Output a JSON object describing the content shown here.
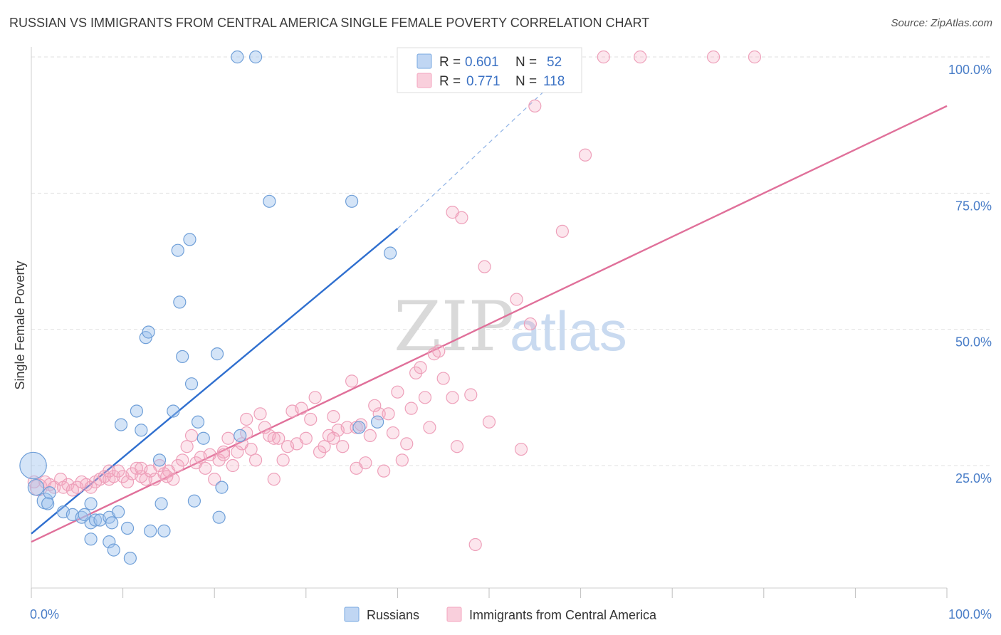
{
  "title": "RUSSIAN VS IMMIGRANTS FROM CENTRAL AMERICA SINGLE FEMALE POVERTY CORRELATION CHART",
  "source": "Source: ZipAtlas.com",
  "watermark": {
    "zip": "ZIP",
    "atlas": "atlas"
  },
  "legend_box": {
    "row1": {
      "r_label": "R =",
      "r_value": "0.601",
      "n_label": "N =",
      "n_value": "52"
    },
    "row2": {
      "r_label": "R =",
      "r_value": "0.771",
      "n_label": "N =",
      "n_value": "118"
    }
  },
  "chart_data": {
    "type": "scatter",
    "title": "RUSSIAN VS IMMIGRANTS FROM CENTRAL AMERICA SINGLE FEMALE POVERTY CORRELATION CHART",
    "xlabel": "",
    "ylabel": "Single Female Poverty",
    "xlim": [
      0,
      100
    ],
    "ylim": [
      5,
      102
    ],
    "x_tick_labels": [
      "0.0%",
      "100.0%"
    ],
    "y_ticks": [
      25,
      50,
      75,
      100
    ],
    "y_tick_labels": [
      "25.0%",
      "50.0%",
      "75.0%",
      "100.0%"
    ],
    "grid": "horizontal dashed",
    "legend_placement": "bottom-center",
    "colors": {
      "russians": "#7aa9e0",
      "russians_line": "#2f6fcf",
      "central_america": "#f4a6bf",
      "central_america_line": "#e0709a"
    },
    "series": [
      {
        "name": "Russians",
        "R": 0.601,
        "N": 52,
        "trend": {
          "x": [
            0,
            40
          ],
          "y": [
            12.5,
            68.5
          ],
          "dashed_to": {
            "x": 60,
            "y": 100
          }
        },
        "points": [
          [
            0.2,
            25.0,
            2.2
          ],
          [
            0.5,
            21.0,
            1.3
          ],
          [
            1.5,
            18.5,
            1.3
          ],
          [
            2.0,
            20.0,
            1
          ],
          [
            1.8,
            18.0,
            1
          ],
          [
            3.5,
            16.5,
            1
          ],
          [
            4.5,
            16.0,
            1
          ],
          [
            5.5,
            15.5,
            1
          ],
          [
            6.5,
            14.5,
            1
          ],
          [
            5.8,
            16.0,
            1
          ],
          [
            7.0,
            15.0,
            1
          ],
          [
            6.5,
            18.0,
            1
          ],
          [
            6.5,
            11.5,
            1
          ],
          [
            7.5,
            15.0,
            1
          ],
          [
            8.5,
            11.0,
            1
          ],
          [
            8.5,
            15.5,
            1
          ],
          [
            8.8,
            14.5,
            1
          ],
          [
            9.5,
            16.5,
            1
          ],
          [
            9.0,
            9.5,
            1
          ],
          [
            10.5,
            13.5,
            1
          ],
          [
            10.8,
            8.0,
            1
          ],
          [
            9.8,
            32.5,
            1
          ],
          [
            11.5,
            35.0,
            1
          ],
          [
            12.0,
            31.5,
            1
          ],
          [
            12.5,
            48.5,
            1
          ],
          [
            12.8,
            49.5,
            1
          ],
          [
            13.0,
            13.0,
            1
          ],
          [
            14.0,
            26.0,
            1
          ],
          [
            14.2,
            18.0,
            1
          ],
          [
            14.5,
            13.0,
            1
          ],
          [
            15.5,
            35.0,
            1
          ],
          [
            16.0,
            64.5,
            1
          ],
          [
            16.2,
            55.0,
            1
          ],
          [
            16.5,
            45.0,
            1
          ],
          [
            17.3,
            66.5,
            1
          ],
          [
            17.5,
            40.0,
            1
          ],
          [
            17.8,
            18.5,
            1
          ],
          [
            18.2,
            33.0,
            1
          ],
          [
            18.8,
            30.0,
            1
          ],
          [
            20.3,
            45.5,
            1
          ],
          [
            20.5,
            15.5,
            1
          ],
          [
            20.8,
            21.0,
            1
          ],
          [
            22.8,
            30.5,
            1
          ],
          [
            22.5,
            100.0,
            1
          ],
          [
            24.5,
            100.0,
            1
          ],
          [
            26.0,
            73.5,
            1
          ],
          [
            35.0,
            73.5,
            1
          ],
          [
            35.8,
            32.0,
            1
          ],
          [
            37.8,
            33.0,
            1
          ],
          [
            39.2,
            64.0,
            1
          ],
          [
            41.5,
            100.0,
            1
          ],
          [
            46.0,
            100.0,
            1
          ]
        ]
      },
      {
        "name": "Immigrants from Central America",
        "R": 0.771,
        "N": 118,
        "trend": {
          "x": [
            0,
            100
          ],
          "y": [
            11.0,
            91.0
          ]
        },
        "points": [
          [
            0.3,
            22.0,
            1
          ],
          [
            0.8,
            21.0,
            1.4
          ],
          [
            1.5,
            22.0,
            1
          ],
          [
            2.0,
            21.5,
            1
          ],
          [
            2.5,
            21.0,
            1
          ],
          [
            3.2,
            22.5,
            1
          ],
          [
            3.5,
            21.0,
            1
          ],
          [
            4.0,
            21.5,
            1
          ],
          [
            4.5,
            20.5,
            1
          ],
          [
            5.0,
            21.0,
            1
          ],
          [
            5.5,
            22.0,
            1
          ],
          [
            6.0,
            21.5,
            1
          ],
          [
            6.5,
            21.0,
            1
          ],
          [
            7.0,
            22.0,
            1
          ],
          [
            7.5,
            22.5,
            1
          ],
          [
            8.0,
            23.0,
            1
          ],
          [
            8.5,
            22.5,
            1
          ],
          [
            9.0,
            23.0,
            1
          ],
          [
            9.5,
            24.0,
            1
          ],
          [
            10.0,
            23.0,
            1
          ],
          [
            10.5,
            22.0,
            1
          ],
          [
            11.0,
            23.5,
            1
          ],
          [
            11.5,
            24.5,
            1
          ],
          [
            12.0,
            23.0,
            1
          ],
          [
            12.5,
            22.5,
            1
          ],
          [
            13.0,
            24.0,
            1
          ],
          [
            13.5,
            22.5,
            1
          ],
          [
            14.0,
            25.0,
            1
          ],
          [
            14.5,
            23.5,
            1
          ],
          [
            15.0,
            24.0,
            1
          ],
          [
            15.5,
            22.5,
            1
          ],
          [
            16.0,
            25.0,
            1
          ],
          [
            16.5,
            26.0,
            1
          ],
          [
            17.0,
            28.5,
            1
          ],
          [
            17.5,
            30.5,
            1
          ],
          [
            18.0,
            25.5,
            1
          ],
          [
            18.5,
            26.5,
            1
          ],
          [
            19.0,
            24.5,
            1
          ],
          [
            19.5,
            27.0,
            1
          ],
          [
            20.0,
            22.5,
            1
          ],
          [
            20.5,
            26.0,
            1
          ],
          [
            21.0,
            27.5,
            1
          ],
          [
            21.5,
            30.0,
            1
          ],
          [
            22.0,
            25.0,
            1
          ],
          [
            22.5,
            27.5,
            1
          ],
          [
            23.0,
            29.0,
            1
          ],
          [
            23.5,
            31.0,
            1
          ],
          [
            24.0,
            28.0,
            1
          ],
          [
            24.5,
            26.0,
            1
          ],
          [
            25.0,
            34.5,
            1
          ],
          [
            25.5,
            32.0,
            1
          ],
          [
            26.0,
            30.5,
            1
          ],
          [
            26.5,
            22.5,
            1
          ],
          [
            27.0,
            30.0,
            1
          ],
          [
            27.5,
            26.0,
            1
          ],
          [
            28.0,
            28.5,
            1
          ],
          [
            28.5,
            35.0,
            1
          ],
          [
            29.0,
            29.0,
            1
          ],
          [
            29.5,
            35.5,
            1
          ],
          [
            30.0,
            30.0,
            1
          ],
          [
            30.5,
            33.5,
            1
          ],
          [
            31.0,
            37.5,
            1
          ],
          [
            31.5,
            27.5,
            1
          ],
          [
            32.0,
            28.5,
            1
          ],
          [
            32.5,
            30.5,
            1
          ],
          [
            33.0,
            34.0,
            1
          ],
          [
            33.5,
            31.5,
            1
          ],
          [
            34.0,
            28.5,
            1
          ],
          [
            34.5,
            32.0,
            1
          ],
          [
            35.0,
            40.5,
            1
          ],
          [
            35.5,
            24.5,
            1
          ],
          [
            36.0,
            32.5,
            1
          ],
          [
            36.5,
            25.5,
            1
          ],
          [
            37.0,
            30.5,
            1
          ],
          [
            37.5,
            36.0,
            1
          ],
          [
            38.0,
            34.5,
            1
          ],
          [
            38.5,
            24.0,
            1
          ],
          [
            39.0,
            34.5,
            1
          ],
          [
            39.5,
            31.0,
            1
          ],
          [
            40.0,
            38.5,
            1
          ],
          [
            40.5,
            26.0,
            1
          ],
          [
            41.0,
            29.0,
            1
          ],
          [
            41.5,
            35.5,
            1
          ],
          [
            42.0,
            42.0,
            1
          ],
          [
            42.5,
            43.0,
            1
          ],
          [
            43.0,
            37.5,
            1
          ],
          [
            43.5,
            32.0,
            1
          ],
          [
            44.0,
            45.5,
            1
          ],
          [
            44.5,
            46.0,
            1
          ],
          [
            45.0,
            41.0,
            1
          ],
          [
            46.0,
            37.5,
            1
          ],
          [
            46.0,
            71.5,
            1
          ],
          [
            46.5,
            28.5,
            1
          ],
          [
            47.0,
            70.5,
            1
          ],
          [
            48.0,
            38.0,
            1
          ],
          [
            48.5,
            10.5,
            1
          ],
          [
            49.5,
            61.5,
            1
          ],
          [
            50.0,
            33.0,
            1
          ],
          [
            53.0,
            55.5,
            1
          ],
          [
            53.5,
            28.0,
            1
          ],
          [
            54.5,
            51.0,
            1
          ],
          [
            55.0,
            91.0,
            1
          ],
          [
            58.0,
            68.0,
            1
          ],
          [
            60.5,
            82.0,
            1
          ],
          [
            56.0,
            100.0,
            1
          ],
          [
            58.5,
            100.0,
            1
          ],
          [
            62.5,
            100.0,
            1
          ],
          [
            66.5,
            100.0,
            1
          ],
          [
            74.5,
            100.0,
            1
          ],
          [
            79.0,
            100.0,
            1
          ],
          [
            35.5,
            32.0,
            1
          ],
          [
            33.0,
            30.0,
            1
          ],
          [
            23.5,
            33.5,
            1
          ],
          [
            12.0,
            24.5,
            1
          ],
          [
            8.5,
            24.0,
            1
          ],
          [
            14.8,
            23.0,
            1
          ],
          [
            26.5,
            30.0,
            1
          ],
          [
            21.0,
            27.0,
            1
          ]
        ]
      }
    ]
  },
  "bottom_legend": [
    "Russians",
    "Immigrants from Central America"
  ]
}
